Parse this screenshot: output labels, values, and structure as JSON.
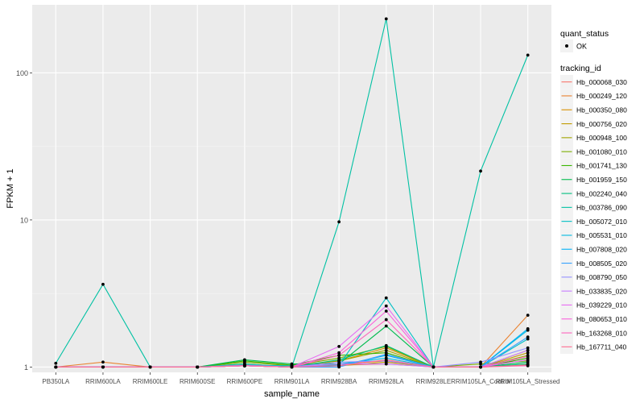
{
  "chart_data": {
    "type": "line",
    "title": "",
    "xlabel": "sample_name",
    "ylabel": "FPKM + 1",
    "yscale": "log10",
    "ylim": [
      0.92,
      290
    ],
    "yticks": [
      1,
      10,
      100
    ],
    "ytick_labels": [
      "1",
      "10",
      "100"
    ],
    "grid": true,
    "legend_position": "right",
    "categories": [
      "PB350LA",
      "RRIM600LA",
      "RRIM600LE",
      "RRIM600SE",
      "RRIM600PE",
      "RRIM901LA",
      "RRIM928BA",
      "RRIM928LA",
      "RRIM928LE",
      "RRIM105LA_Control",
      "RRIM105LA_Stressed"
    ],
    "x_tick_labels": [
      "PB350LA",
      "RRIM600LA",
      "RRIM600LE",
      "RRIM600SE",
      "RRIM600PE",
      "RRIM901LA",
      "RRIM928BA",
      "RRIM928LA",
      "RRIM928LE",
      "RRIM105LA_Control",
      "RRIM105LA_Stressed"
    ],
    "point_legend": {
      "title": "quant_status",
      "label": "OK"
    },
    "line_legend_title": "tracking_id",
    "series": [
      {
        "name": "Hb_000068_030",
        "color": "#F8766D",
        "values": [
          1.0,
          1.0,
          1.0,
          1.0,
          1.02,
          1.0,
          1.03,
          1.05,
          1.0,
          1.0,
          1.04
        ]
      },
      {
        "name": "Hb_000249_120",
        "color": "#EA8331",
        "values": [
          1.0,
          1.08,
          1.0,
          1.0,
          1.02,
          1.0,
          1.05,
          1.1,
          1.0,
          1.0,
          2.25
        ]
      },
      {
        "name": "Hb_000350_080",
        "color": "#D89000",
        "values": [
          1.0,
          1.0,
          1.0,
          1.0,
          1.03,
          1.02,
          1.1,
          1.35,
          1.0,
          1.0,
          1.3
        ]
      },
      {
        "name": "Hb_000756_020",
        "color": "#C09B00",
        "values": [
          1.0,
          1.0,
          1.0,
          1.0,
          1.02,
          1.0,
          1.02,
          1.08,
          1.0,
          1.0,
          1.25
        ]
      },
      {
        "name": "Hb_000948_100",
        "color": "#A3A500",
        "values": [
          1.0,
          1.0,
          1.0,
          1.0,
          1.05,
          1.0,
          1.1,
          1.3,
          1.0,
          1.0,
          1.2
        ]
      },
      {
        "name": "Hb_001080_010",
        "color": "#7CAE00",
        "values": [
          1.0,
          1.0,
          1.0,
          1.0,
          1.08,
          1.02,
          1.15,
          1.38,
          1.0,
          1.05,
          1.1
        ]
      },
      {
        "name": "Hb_001741_130",
        "color": "#39B600",
        "values": [
          1.0,
          1.0,
          1.0,
          1.0,
          1.1,
          1.03,
          1.2,
          1.25,
          1.0,
          1.0,
          1.15
        ]
      },
      {
        "name": "Hb_001959_150",
        "color": "#00BB4E",
        "values": [
          1.0,
          1.0,
          1.0,
          1.0,
          1.12,
          1.05,
          1.05,
          1.9,
          1.0,
          1.0,
          1.08
        ]
      },
      {
        "name": "Hb_002240_040",
        "color": "#00BF7D",
        "values": [
          1.0,
          1.0,
          1.0,
          1.0,
          1.03,
          1.0,
          1.12,
          1.4,
          1.0,
          1.0,
          1.05
        ]
      },
      {
        "name": "Hb_003786_090",
        "color": "#00C1A3",
        "values": [
          1.06,
          3.65,
          1.0,
          1.0,
          1.05,
          1.0,
          9.7,
          233.0,
          1.0,
          21.5,
          132.0
        ]
      },
      {
        "name": "Hb_005072_010",
        "color": "#00BFC4",
        "values": [
          1.0,
          1.0,
          1.0,
          1.0,
          1.03,
          1.02,
          1.03,
          2.95,
          1.0,
          1.0,
          1.55
        ]
      },
      {
        "name": "Hb_005531_010",
        "color": "#00BAE0",
        "values": [
          1.0,
          1.0,
          1.0,
          1.0,
          1.02,
          1.0,
          1.05,
          1.15,
          1.0,
          1.0,
          1.78
        ]
      },
      {
        "name": "Hb_007808_020",
        "color": "#00B0F6",
        "values": [
          1.0,
          1.0,
          1.0,
          1.0,
          1.02,
          1.0,
          1.02,
          1.2,
          1.0,
          1.0,
          1.82
        ]
      },
      {
        "name": "Hb_008505_020",
        "color": "#35A2FF",
        "values": [
          1.0,
          1.0,
          1.0,
          1.0,
          1.02,
          1.0,
          1.0,
          1.22,
          1.0,
          1.0,
          1.6
        ]
      },
      {
        "name": "Hb_008790_050",
        "color": "#9590FF",
        "values": [
          1.0,
          1.0,
          1.0,
          1.0,
          1.03,
          1.0,
          1.08,
          1.1,
          1.0,
          1.08,
          1.35
        ]
      },
      {
        "name": "Hb_033835_020",
        "color": "#C77CFF",
        "values": [
          1.0,
          1.0,
          1.0,
          1.0,
          1.02,
          1.0,
          1.05,
          1.05,
          1.0,
          1.0,
          1.3
        ]
      },
      {
        "name": "Hb_039229_010",
        "color": "#E76BF3",
        "values": [
          1.0,
          1.0,
          1.0,
          1.0,
          1.02,
          1.0,
          1.38,
          2.6,
          1.0,
          1.0,
          1.12
        ]
      },
      {
        "name": "Hb_080653_010",
        "color": "#FA62DB",
        "values": [
          1.0,
          1.0,
          1.0,
          1.0,
          1.02,
          1.0,
          1.25,
          2.4,
          1.0,
          1.0,
          1.18
        ]
      },
      {
        "name": "Hb_163268_010",
        "color": "#FF62BC",
        "values": [
          1.0,
          1.0,
          1.0,
          1.0,
          1.02,
          1.0,
          1.2,
          2.1,
          1.0,
          1.0,
          1.02
        ]
      },
      {
        "name": "Hb_167711_040",
        "color": "#FF6C91",
        "values": [
          1.0,
          1.0,
          1.0,
          1.0,
          1.02,
          1.0,
          1.02,
          1.12,
          1.0,
          1.0,
          1.03
        ]
      }
    ]
  }
}
